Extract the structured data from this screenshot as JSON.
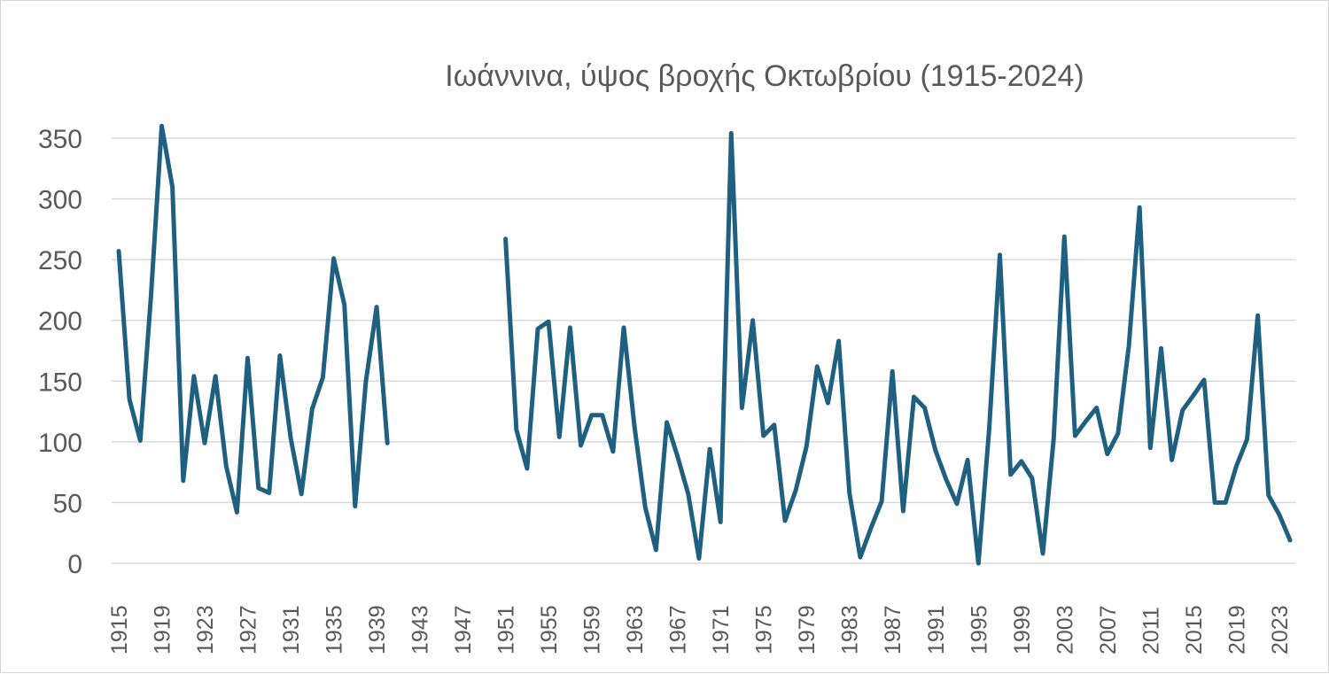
{
  "chart_data": {
    "type": "line",
    "title": "Ιωάννινα, ύψος βροχής Οκτωβρίου (1915-2024)",
    "xlabel": "",
    "ylabel": "",
    "ylim": [
      0,
      350
    ],
    "yticks": [
      0,
      50,
      100,
      150,
      200,
      250,
      300,
      350
    ],
    "grid": true,
    "legend": "none",
    "color": "#1f5f7f",
    "x": [
      1915,
      1916,
      1917,
      1918,
      1919,
      1920,
      1921,
      1922,
      1923,
      1924,
      1925,
      1926,
      1927,
      1928,
      1929,
      1930,
      1931,
      1932,
      1933,
      1934,
      1935,
      1936,
      1937,
      1938,
      1939,
      1940,
      1941,
      1942,
      1943,
      1944,
      1945,
      1946,
      1947,
      1948,
      1949,
      1950,
      1951,
      1952,
      1953,
      1954,
      1955,
      1956,
      1957,
      1958,
      1959,
      1960,
      1961,
      1962,
      1963,
      1964,
      1965,
      1966,
      1967,
      1968,
      1969,
      1970,
      1971,
      1972,
      1973,
      1974,
      1975,
      1976,
      1977,
      1978,
      1979,
      1980,
      1981,
      1982,
      1983,
      1984,
      1985,
      1986,
      1987,
      1988,
      1989,
      1990,
      1991,
      1992,
      1993,
      1994,
      1995,
      1996,
      1997,
      1998,
      1999,
      2000,
      2001,
      2002,
      2003,
      2004,
      2005,
      2006,
      2007,
      2008,
      2009,
      2010,
      2011,
      2012,
      2013,
      2014,
      2015,
      2016,
      2017,
      2018,
      2019,
      2020,
      2021,
      2022,
      2023,
      2024
    ],
    "xticks": [
      "1915",
      "1919",
      "1923",
      "1927",
      "1931",
      "1935",
      "1939",
      "1943",
      "1947",
      "1951",
      "1955",
      "1959",
      "1963",
      "1967",
      "1971",
      "1975",
      "1979",
      "1983",
      "1987",
      "1991",
      "1995",
      "1999",
      "2003",
      "2007",
      "2011",
      "2015",
      "2019",
      "2023"
    ],
    "series": [
      {
        "values": [
          257,
          135,
          101,
          220,
          360,
          310,
          68,
          154,
          99,
          154,
          80,
          42,
          169,
          62,
          58,
          171,
          103,
          57,
          127,
          153,
          251,
          213,
          47,
          150,
          211,
          99,
          null,
          null,
          null,
          null,
          null,
          null,
          null,
          null,
          null,
          null,
          267,
          110,
          78,
          193,
          199,
          104,
          194,
          97,
          122,
          122,
          92,
          194,
          112,
          46,
          11,
          116,
          88,
          57,
          4,
          94,
          34,
          354,
          128,
          200,
          105,
          114,
          35,
          60,
          96,
          162,
          132,
          183,
          58,
          5,
          29,
          51,
          158,
          43,
          137,
          128,
          93,
          69,
          49,
          85,
          0,
          110,
          254,
          73,
          84,
          70,
          8,
          102,
          269,
          105,
          117,
          128,
          90,
          107,
          179,
          293,
          95,
          177,
          85,
          126,
          138,
          151,
          50,
          50,
          80,
          102,
          204,
          56,
          40,
          19
        ]
      }
    ]
  }
}
